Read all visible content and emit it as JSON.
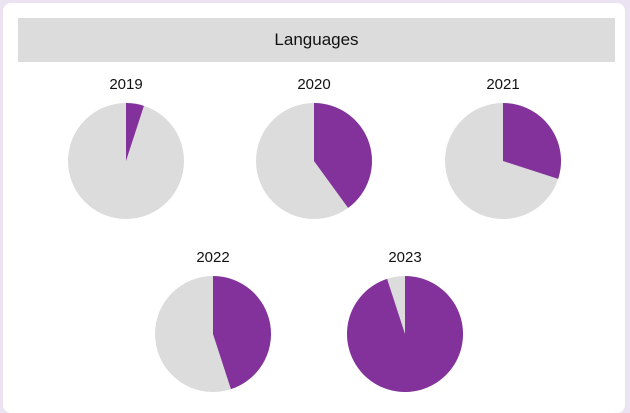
{
  "card": {
    "title": "Languages"
  },
  "colors": {
    "highlight": "#84329b",
    "remainder": "#dcdcdc",
    "frame": "#ece3f2"
  },
  "chart_data": {
    "type": "pie",
    "title": "Languages",
    "charts": [
      {
        "label": "2019",
        "value": 5
      },
      {
        "label": "2020",
        "value": 40
      },
      {
        "label": "2021",
        "value": 30
      },
      {
        "label": "2022",
        "value": 45
      },
      {
        "label": "2023",
        "value": 95
      }
    ],
    "unit": "percent",
    "start_angle": "12 o'clock",
    "direction": "clockwise",
    "legend": "none"
  }
}
